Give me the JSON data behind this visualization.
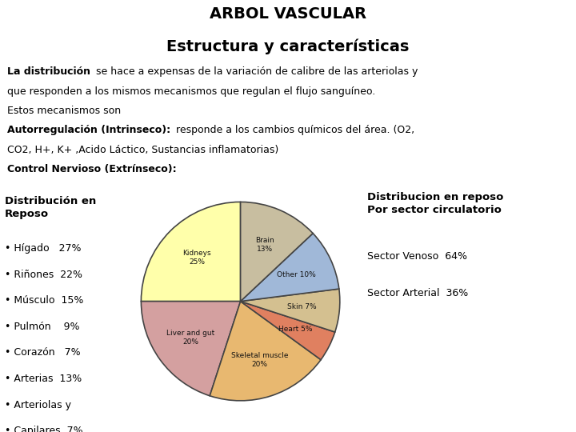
{
  "title_line1": "ARBOL VASCULAR",
  "title_line2": "Estructura y características",
  "left_title": "Distribución en\nReposo",
  "left_bullets": [
    "Hígado   27%",
    "Riñones  22%",
    "Músculo  15%",
    "Pulmón    9%",
    "Corazón   7%",
    "Arterias  13%",
    "Arteriolas y",
    "Capilares  7%"
  ],
  "right_title": "Distribucion en reposo\nPor sector circulatorio",
  "right_line1": "Sector Venoso  64%",
  "right_line2": "Sector Arterial  36%",
  "pie_values": [
    25,
    20,
    20,
    5,
    7,
    10,
    13
  ],
  "pie_colors": [
    "#ffffaa",
    "#d4a0a0",
    "#e8b870",
    "#e08060",
    "#d4c090",
    "#a0b8d8",
    "#c8bea0"
  ],
  "pie_label_texts": [
    "Kidneys\n25%",
    "Liver and gut\n20%",
    "Skeletal muscle\n20%",
    "Heart 5%",
    "Skin 7%",
    "Other 10%",
    "Brain\n13%"
  ],
  "background_color": "#ffffff",
  "text_color": "#000000",
  "pie_edge_color": "#444444"
}
